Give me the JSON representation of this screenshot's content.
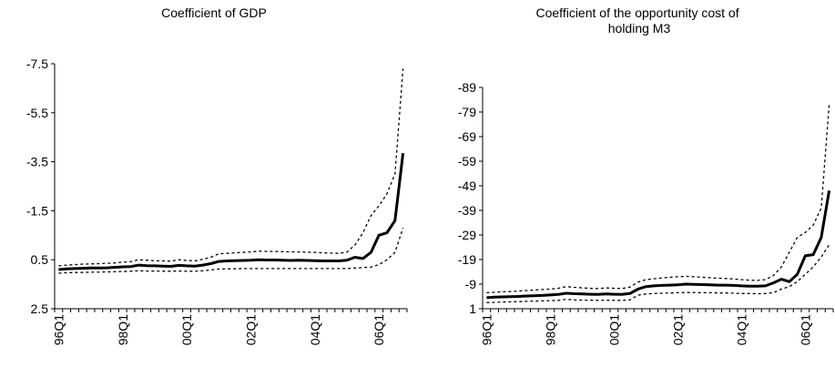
{
  "chart_data": [
    {
      "type": "line",
      "title": "Coefficient of GDP",
      "xlabel": "",
      "ylabel": "",
      "ylim": [
        -7.5,
        2.5
      ],
      "yticks": [
        2.5,
        0.5,
        -1.5,
        -3.5,
        -5.5,
        -7.5
      ],
      "ytick_labels": [
        "2.5",
        "0.5",
        "-1.5",
        "-3.5",
        "-5.5",
        "-7.5"
      ],
      "xtick_labels": [
        "96Q1",
        "98Q1",
        "00Q1",
        "02Q1",
        "04Q1",
        "06Q1"
      ],
      "x_start": "1996Q1",
      "periods": 44,
      "grid": false,
      "series": [
        {
          "role": "estimate",
          "values": [
            0.9,
            0.87,
            0.86,
            0.85,
            0.84,
            0.84,
            0.83,
            0.81,
            0.79,
            0.78,
            0.72,
            0.74,
            0.75,
            0.76,
            0.77,
            0.73,
            0.75,
            0.76,
            0.72,
            0.66,
            0.57,
            0.55,
            0.54,
            0.53,
            0.52,
            0.5,
            0.51,
            0.51,
            0.52,
            0.53,
            0.52,
            0.53,
            0.54,
            0.55,
            0.55,
            0.55,
            0.52,
            0.4,
            0.45,
            0.2,
            -0.5,
            -0.6,
            -1.1,
            -3.85
          ]
        },
        {
          "role": "upper-band",
          "values": [
            1.05,
            1.03,
            1.02,
            1.02,
            1.01,
            1.01,
            1.0,
            0.99,
            0.98,
            0.97,
            0.95,
            0.96,
            0.96,
            0.97,
            0.97,
            0.96,
            0.97,
            0.97,
            0.95,
            0.92,
            0.88,
            0.87,
            0.87,
            0.86,
            0.86,
            0.86,
            0.86,
            0.86,
            0.86,
            0.86,
            0.86,
            0.86,
            0.86,
            0.86,
            0.86,
            0.86,
            0.86,
            0.84,
            0.82,
            0.8,
            0.7,
            0.5,
            0.2,
            -0.8
          ]
        },
        {
          "role": "lower-band",
          "values": [
            0.75,
            0.72,
            0.7,
            0.68,
            0.67,
            0.66,
            0.65,
            0.63,
            0.6,
            0.58,
            0.5,
            0.52,
            0.54,
            0.55,
            0.56,
            0.5,
            0.53,
            0.55,
            0.48,
            0.4,
            0.26,
            0.24,
            0.22,
            0.2,
            0.18,
            0.15,
            0.16,
            0.16,
            0.17,
            0.18,
            0.18,
            0.19,
            0.2,
            0.22,
            0.23,
            0.24,
            0.19,
            -0.1,
            -0.6,
            -1.3,
            -1.7,
            -2.2,
            -3.0,
            -7.3
          ]
        }
      ]
    },
    {
      "type": "line",
      "title": "Coefficient of the opportunity cost of holding M3",
      "xlabel": "",
      "ylabel": "",
      "ylim": [
        -89,
        1
      ],
      "yticks": [
        1,
        -9,
        -19,
        -29,
        -39,
        -49,
        -59,
        -69,
        -79,
        -89
      ],
      "ytick_labels": [
        "1",
        "-9",
        "-19",
        "-29",
        "-39",
        "-49",
        "-59",
        "-69",
        "-79",
        "-89"
      ],
      "xtick_labels": [
        "96Q1",
        "98Q1",
        "00Q1",
        "02Q1",
        "04Q1",
        "06Q1"
      ],
      "x_start": "1996Q1",
      "periods": 44,
      "grid": false,
      "series": [
        {
          "role": "estimate",
          "values": [
            -3.5,
            -3.7,
            -3.8,
            -3.9,
            -4.0,
            -4.2,
            -4.3,
            -4.4,
            -4.6,
            -4.8,
            -5.3,
            -5.1,
            -5.0,
            -4.9,
            -4.8,
            -5.0,
            -4.9,
            -4.8,
            -5.2,
            -7.0,
            -8.0,
            -8.3,
            -8.5,
            -8.6,
            -8.7,
            -9.0,
            -8.9,
            -8.8,
            -8.7,
            -8.6,
            -8.6,
            -8.5,
            -8.3,
            -8.2,
            -8.2,
            -8.3,
            -9.5,
            -11.0,
            -10.0,
            -13.0,
            -20.5,
            -21.0,
            -28.0,
            -47.0
          ]
        },
        {
          "role": "upper-band",
          "values": [
            -1.5,
            -1.6,
            -1.7,
            -1.8,
            -1.9,
            -2.0,
            -2.1,
            -2.2,
            -2.3,
            -2.4,
            -2.8,
            -2.6,
            -2.5,
            -2.5,
            -2.4,
            -2.5,
            -2.4,
            -2.4,
            -2.6,
            -4.5,
            -5.0,
            -5.2,
            -5.3,
            -5.4,
            -5.5,
            -5.6,
            -5.6,
            -5.5,
            -5.5,
            -5.4,
            -5.4,
            -5.3,
            -5.2,
            -5.2,
            -5.1,
            -5.2,
            -5.5,
            -7.0,
            -8.0,
            -10.0,
            -13.0,
            -16.0,
            -20.0,
            -25.0
          ]
        },
        {
          "role": "lower-band",
          "values": [
            -5.5,
            -5.7,
            -5.9,
            -6.0,
            -6.2,
            -6.4,
            -6.6,
            -6.8,
            -7.0,
            -7.3,
            -8.0,
            -7.7,
            -7.5,
            -7.3,
            -7.2,
            -7.5,
            -7.3,
            -7.2,
            -7.8,
            -9.8,
            -10.8,
            -11.2,
            -11.5,
            -11.8,
            -12.0,
            -12.2,
            -12.0,
            -11.8,
            -11.6,
            -11.4,
            -11.3,
            -11.1,
            -10.8,
            -10.6,
            -10.5,
            -10.8,
            -12.5,
            -16.0,
            -22.0,
            -28.0,
            -30.0,
            -33.0,
            -40.0,
            -82.0
          ]
        }
      ]
    }
  ]
}
